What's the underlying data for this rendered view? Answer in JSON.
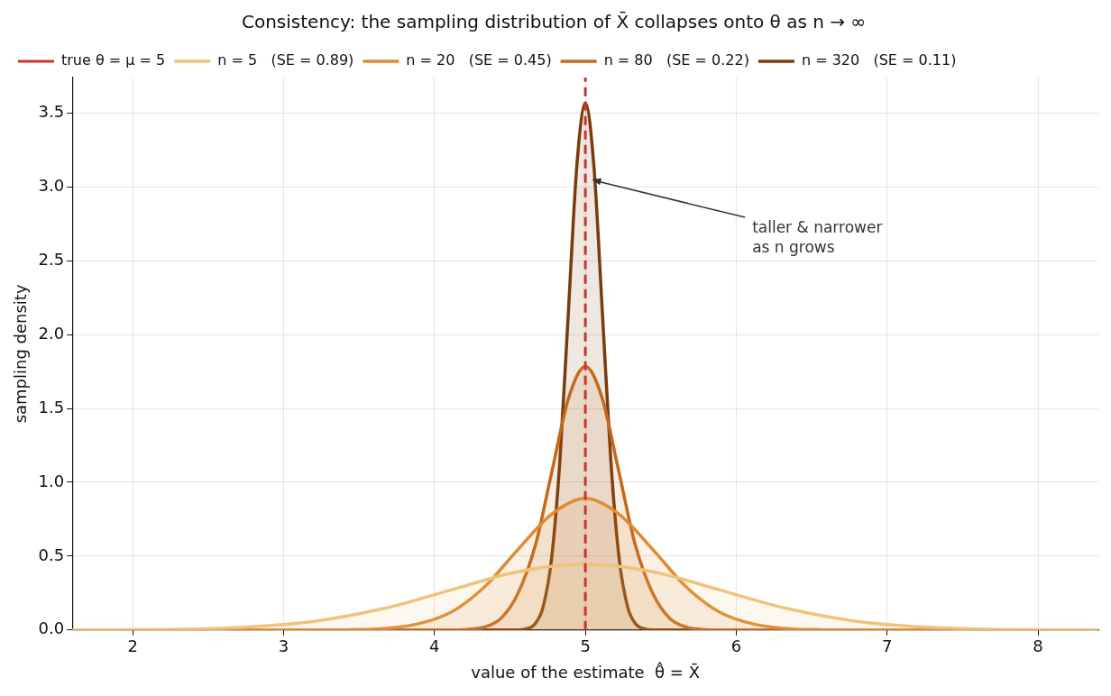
{
  "chart_data": {
    "type": "area",
    "title": "Consistency: the sampling distribution of X̄ collapses onto θ as n → ∞",
    "xlabel": "value of the estimate  θ̂ = X̄",
    "ylabel": "sampling density",
    "xlim": [
      1.6,
      8.4
    ],
    "xticks": [
      2,
      3,
      4,
      5,
      6,
      7,
      8
    ],
    "ylim": [
      0,
      3.74
    ],
    "yticks": [
      {
        "value": 0,
        "label": "0.0"
      },
      {
        "value": 0.5,
        "label": "0.5"
      },
      {
        "value": 1,
        "label": "1.0"
      },
      {
        "value": 1.5,
        "label": "1.5"
      },
      {
        "value": 2,
        "label": "2.0"
      },
      {
        "value": 2.5,
        "label": "2.5"
      },
      {
        "value": 3,
        "label": "3.0"
      },
      {
        "value": 3.5,
        "label": "3.5"
      }
    ],
    "grid": true,
    "legend": "top left",
    "marker": "none",
    "line_style": "solid",
    "series": [
      {
        "name": "n = 5   (SE = 0.89)",
        "color": "#f0c27b",
        "x": [
          1.6,
          1.87,
          2.32,
          2.76,
          3.21,
          3.66,
          4.11,
          4.55,
          5,
          5.45,
          5.89,
          6.34,
          6.79,
          7.24,
          7.68,
          8.13,
          8.4
        ],
        "values": [
          0,
          0.001,
          0.005,
          0.02,
          0.06,
          0.145,
          0.271,
          0.394,
          0.446,
          0.394,
          0.271,
          0.145,
          0.06,
          0.02,
          0.005,
          0.001,
          0
        ]
      },
      {
        "name": "n = 20   (SE = 0.45)",
        "color": "#e08a33",
        "x": [
          1.6,
          3.21,
          3.44,
          3.66,
          3.88,
          4.11,
          4.33,
          4.55,
          4.78,
          5,
          5.22,
          5.45,
          5.67,
          5.89,
          6.12,
          6.34,
          6.56,
          6.79,
          8.4
        ],
        "values": [
          0,
          0,
          0.002,
          0.01,
          0.039,
          0.121,
          0.29,
          0.541,
          0.787,
          0.892,
          0.787,
          0.541,
          0.29,
          0.121,
          0.039,
          0.01,
          0.002,
          0,
          0
        ]
      },
      {
        "name": "n = 80   (SE = 0.22)",
        "color": "#c4681c",
        "x": [
          1.6,
          4.11,
          4.22,
          4.33,
          4.44,
          4.55,
          4.67,
          4.78,
          4.89,
          5,
          5.11,
          5.22,
          5.33,
          5.45,
          5.56,
          5.67,
          5.78,
          5.89,
          8.4
        ],
        "values": [
          0,
          0,
          0.004,
          0.02,
          0.078,
          0.241,
          0.579,
          1.082,
          1.574,
          1.784,
          1.574,
          1.082,
          0.579,
          0.241,
          0.078,
          0.02,
          0.004,
          0,
          0
        ]
      },
      {
        "name": "n = 320   (SE = 0.11)",
        "color": "#7a3b0c",
        "x": [
          1.6,
          4.55,
          4.609,
          4.665,
          4.72,
          4.776,
          4.832,
          4.888,
          4.944,
          5,
          5.056,
          5.112,
          5.168,
          5.224,
          5.28,
          5.335,
          5.391,
          5.45,
          8.4
        ],
        "values": [
          0,
          0,
          0.008,
          0.04,
          0.157,
          0.483,
          1.159,
          2.164,
          3.149,
          3.568,
          3.149,
          2.164,
          1.159,
          0.483,
          0.157,
          0.04,
          0.008,
          0,
          0
        ]
      }
    ],
    "ref_lines": [
      {
        "axis": "x",
        "value": 5,
        "label": "true θ = μ = 5",
        "color": "#c8372d",
        "line_style": "dashed"
      }
    ],
    "annotations": [
      {
        "text": "taller & narrower\nas n grows",
        "x": 5.03,
        "y": 3.05
      }
    ]
  }
}
